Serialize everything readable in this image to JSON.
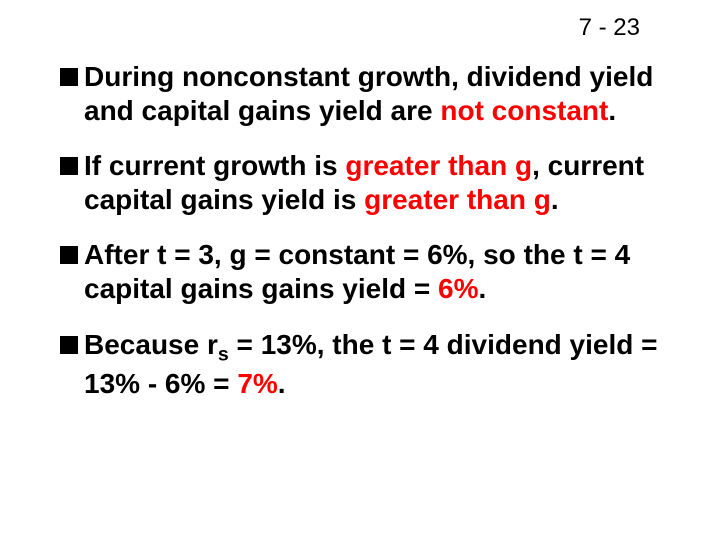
{
  "page_number": "7 - 23",
  "bullets": {
    "b1_pre": "During nonconstant growth, dividend yield and capital gains yield are ",
    "b1_red": "not constant",
    "b1_post": ".",
    "b2_pre": "If current growth is ",
    "b2_red1": "greater than g",
    "b2_mid": ", current capital gains yield is ",
    "b2_red2": "greater than g",
    "b2_post": ".",
    "b3_pre": "After t = 3, g = constant = 6%, so the t = 4 capital gains gains yield = ",
    "b3_red": "6%",
    "b3_post": ".",
    "b4_pre": " Because r",
    "b4_sub": "s",
    "b4_mid": " = 13%, the t = 4 dividend yield = 13% - 6% = ",
    "b4_red": "7%",
    "b4_post": "."
  },
  "colors": {
    "text": "#000000",
    "highlight": "#ff0000",
    "background": "#ffffff",
    "bullet": "#000000"
  },
  "typography": {
    "page_number_fontsize": 24,
    "body_fontsize": 28,
    "font_weight": "bold",
    "font_family": "Arial"
  }
}
